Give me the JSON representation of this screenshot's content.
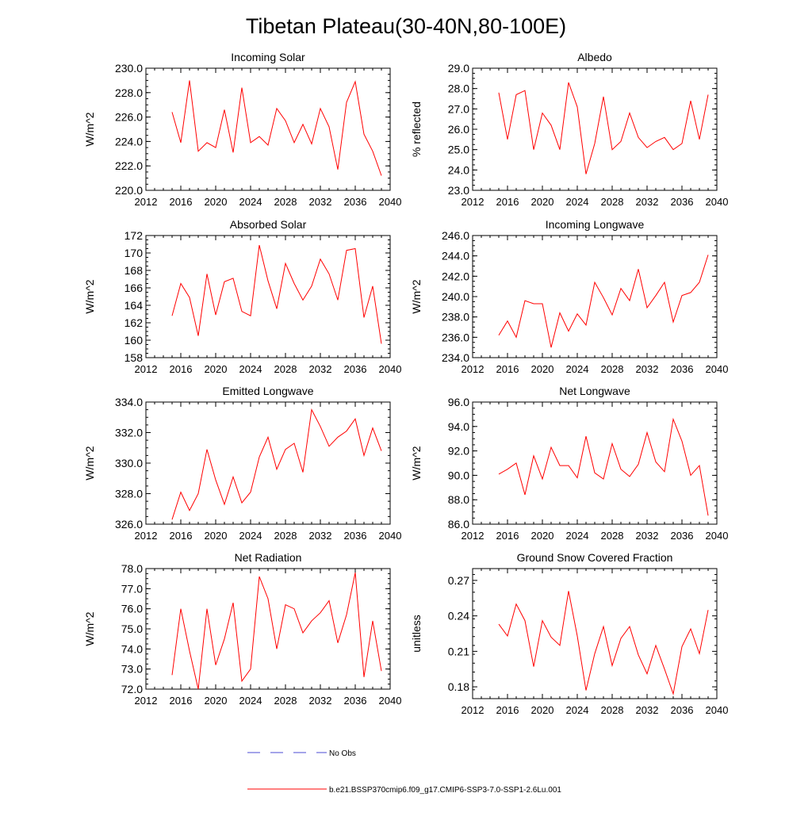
{
  "figure": {
    "title": "Tibetan Plateau(30-40N,80-100E)",
    "legend": [
      {
        "label": "No Obs",
        "color": "#4b4bd6",
        "style": "dashed"
      },
      {
        "label": "b.e21.BSSP370cmip6.f09_g17.CMIP6-SSP3-7.0-SSP1-2.6Lu.001",
        "color": "#ff0000",
        "style": "solid"
      }
    ]
  },
  "chart_data": [
    {
      "type": "line",
      "title": "Incoming Solar",
      "ylabel": "W/m^2",
      "xlim": [
        2012,
        2040
      ],
      "ylim": [
        220,
        230
      ],
      "xticks": [
        2012,
        2016,
        2020,
        2024,
        2028,
        2032,
        2036,
        2040
      ],
      "yticks": [
        220,
        222,
        224,
        226,
        228,
        230
      ],
      "tick_decimals": 1,
      "x": [
        2015,
        2016,
        2017,
        2018,
        2019,
        2020,
        2021,
        2022,
        2023,
        2024,
        2025,
        2026,
        2027,
        2028,
        2029,
        2030,
        2031,
        2032,
        2033,
        2034,
        2035,
        2036,
        2037,
        2038,
        2039
      ],
      "series": [
        {
          "name": "b.e21.BSSP370cmip6.f09_g17.CMIP6-SSP3-7.0-SSP1-2.6Lu.001",
          "color": "#ff0000",
          "values": [
            226.4,
            223.9,
            229.0,
            223.2,
            223.9,
            223.5,
            226.6,
            223.1,
            228.4,
            223.9,
            224.4,
            223.7,
            226.7,
            225.7,
            223.9,
            225.4,
            223.8,
            226.7,
            225.2,
            221.7,
            227.2,
            228.9,
            224.6,
            223.2,
            221.2
          ]
        }
      ]
    },
    {
      "type": "line",
      "title": "Albedo",
      "ylabel": "% reflected",
      "xlim": [
        2012,
        2040
      ],
      "ylim": [
        23,
        29
      ],
      "xticks": [
        2012,
        2016,
        2020,
        2024,
        2028,
        2032,
        2036,
        2040
      ],
      "yticks": [
        23,
        24,
        25,
        26,
        27,
        28,
        29
      ],
      "tick_decimals": 1,
      "x": [
        2015,
        2016,
        2017,
        2018,
        2019,
        2020,
        2021,
        2022,
        2023,
        2024,
        2025,
        2026,
        2027,
        2028,
        2029,
        2030,
        2031,
        2032,
        2033,
        2034,
        2035,
        2036,
        2037,
        2038,
        2039
      ],
      "series": [
        {
          "name": "b.e21.BSSP370cmip6.f09_g17.CMIP6-SSP3-7.0-SSP1-2.6Lu.001",
          "color": "#ff0000",
          "values": [
            27.8,
            25.5,
            27.7,
            27.9,
            25.0,
            26.8,
            26.2,
            25.0,
            28.3,
            27.1,
            23.8,
            25.3,
            27.6,
            25.0,
            25.4,
            26.8,
            25.6,
            25.1,
            25.4,
            25.6,
            25.0,
            25.3,
            27.4,
            25.5,
            27.7
          ]
        }
      ]
    },
    {
      "type": "line",
      "title": "Absorbed Solar",
      "ylabel": "W/m^2",
      "xlim": [
        2012,
        2040
      ],
      "ylim": [
        158,
        172
      ],
      "xticks": [
        2012,
        2016,
        2020,
        2024,
        2028,
        2032,
        2036,
        2040
      ],
      "yticks": [
        158,
        160,
        162,
        164,
        166,
        168,
        170,
        172
      ],
      "tick_decimals": 0,
      "x": [
        2015,
        2016,
        2017,
        2018,
        2019,
        2020,
        2021,
        2022,
        2023,
        2024,
        2025,
        2026,
        2027,
        2028,
        2029,
        2030,
        2031,
        2032,
        2033,
        2034,
        2035,
        2036,
        2037,
        2038,
        2039
      ],
      "series": [
        {
          "name": "b.e21.BSSP370cmip6.f09_g17.CMIP6-SSP3-7.0-SSP1-2.6Lu.001",
          "color": "#ff0000",
          "values": [
            162.8,
            166.5,
            164.9,
            160.5,
            167.6,
            162.9,
            166.7,
            167.1,
            163.3,
            162.8,
            170.9,
            166.8,
            163.6,
            168.8,
            166.5,
            164.6,
            166.2,
            169.3,
            167.6,
            164.6,
            170.3,
            170.5,
            162.6,
            166.2,
            159.6
          ]
        }
      ]
    },
    {
      "type": "line",
      "title": "Incoming Longwave",
      "ylabel": "W/m^2",
      "xlim": [
        2012,
        2040
      ],
      "ylim": [
        234,
        246
      ],
      "xticks": [
        2012,
        2016,
        2020,
        2024,
        2028,
        2032,
        2036,
        2040
      ],
      "yticks": [
        234,
        236,
        238,
        240,
        242,
        244,
        246
      ],
      "tick_decimals": 1,
      "x": [
        2015,
        2016,
        2017,
        2018,
        2019,
        2020,
        2021,
        2022,
        2023,
        2024,
        2025,
        2026,
        2027,
        2028,
        2029,
        2030,
        2031,
        2032,
        2033,
        2034,
        2035,
        2036,
        2037,
        2038,
        2039
      ],
      "series": [
        {
          "name": "b.e21.BSSP370cmip6.f09_g17.CMIP6-SSP3-7.0-SSP1-2.6Lu.001",
          "color": "#ff0000",
          "values": [
            236.2,
            237.6,
            236.0,
            239.6,
            239.3,
            239.3,
            235.0,
            238.4,
            236.6,
            238.3,
            237.2,
            241.4,
            239.9,
            238.2,
            240.8,
            239.6,
            242.7,
            238.9,
            240.1,
            241.4,
            237.5,
            240.1,
            240.4,
            241.4,
            244.1
          ]
        }
      ]
    },
    {
      "type": "line",
      "title": "Emitted Longwave",
      "ylabel": "W/m^2",
      "xlim": [
        2012,
        2040
      ],
      "ylim": [
        326,
        334
      ],
      "xticks": [
        2012,
        2016,
        2020,
        2024,
        2028,
        2032,
        2036,
        2040
      ],
      "yticks": [
        326,
        328,
        330,
        332,
        334
      ],
      "tick_decimals": 1,
      "x": [
        2015,
        2016,
        2017,
        2018,
        2019,
        2020,
        2021,
        2022,
        2023,
        2024,
        2025,
        2026,
        2027,
        2028,
        2029,
        2030,
        2031,
        2032,
        2033,
        2034,
        2035,
        2036,
        2037,
        2038,
        2039
      ],
      "series": [
        {
          "name": "b.e21.BSSP370cmip6.f09_g17.CMIP6-SSP3-7.0-SSP1-2.6Lu.001",
          "color": "#ff0000",
          "values": [
            326.3,
            328.1,
            326.9,
            328.0,
            330.9,
            328.9,
            327.3,
            329.1,
            327.4,
            328.1,
            330.4,
            331.7,
            329.6,
            330.9,
            331.3,
            329.4,
            333.5,
            332.4,
            331.1,
            331.7,
            332.1,
            332.9,
            330.5,
            332.3,
            330.8
          ]
        }
      ]
    },
    {
      "type": "line",
      "title": "Net Longwave",
      "ylabel": "W/m^2",
      "xlim": [
        2012,
        2040
      ],
      "ylim": [
        86,
        96
      ],
      "xticks": [
        2012,
        2016,
        2020,
        2024,
        2028,
        2032,
        2036,
        2040
      ],
      "yticks": [
        86,
        88,
        90,
        92,
        94,
        96
      ],
      "tick_decimals": 1,
      "x": [
        2015,
        2016,
        2017,
        2018,
        2019,
        2020,
        2021,
        2022,
        2023,
        2024,
        2025,
        2026,
        2027,
        2028,
        2029,
        2030,
        2031,
        2032,
        2033,
        2034,
        2035,
        2036,
        2037,
        2038,
        2039
      ],
      "series": [
        {
          "name": "b.e21.BSSP370cmip6.f09_g17.CMIP6-SSP3-7.0-SSP1-2.6Lu.001",
          "color": "#ff0000",
          "values": [
            90.1,
            90.5,
            91.0,
            88.4,
            91.6,
            89.7,
            92.3,
            90.8,
            90.8,
            89.8,
            93.2,
            90.2,
            89.7,
            92.6,
            90.5,
            89.9,
            90.9,
            93.5,
            91.1,
            90.3,
            94.6,
            92.8,
            90.0,
            90.8,
            86.7
          ]
        }
      ]
    },
    {
      "type": "line",
      "title": "Net Radiation",
      "ylabel": "W/m^2",
      "xlim": [
        2012,
        2040
      ],
      "ylim": [
        72,
        78
      ],
      "xticks": [
        2012,
        2016,
        2020,
        2024,
        2028,
        2032,
        2036,
        2040
      ],
      "yticks": [
        72,
        73,
        74,
        75,
        76,
        77,
        78
      ],
      "tick_decimals": 1,
      "x": [
        2015,
        2016,
        2017,
        2018,
        2019,
        2020,
        2021,
        2022,
        2023,
        2024,
        2025,
        2026,
        2027,
        2028,
        2029,
        2030,
        2031,
        2032,
        2033,
        2034,
        2035,
        2036,
        2037,
        2038,
        2039
      ],
      "series": [
        {
          "name": "b.e21.BSSP370cmip6.f09_g17.CMIP6-SSP3-7.0-SSP1-2.6Lu.001",
          "color": "#ff0000",
          "values": [
            72.7,
            76.0,
            73.9,
            72.0,
            76.0,
            73.2,
            74.5,
            76.3,
            72.4,
            73.0,
            77.6,
            76.5,
            74.0,
            76.2,
            76.0,
            74.8,
            75.4,
            75.8,
            76.4,
            74.3,
            75.7,
            77.8,
            72.6,
            75.4,
            72.9
          ]
        }
      ]
    },
    {
      "type": "line",
      "title": "Ground Snow Covered Fraction",
      "ylabel": "unitless",
      "xlim": [
        2012,
        2040
      ],
      "ylim": [
        0.17,
        0.28
      ],
      "xticks": [
        2012,
        2016,
        2020,
        2024,
        2028,
        2032,
        2036,
        2040
      ],
      "yticks": [
        0.18,
        0.21,
        0.24,
        0.27
      ],
      "tick_decimals": 2,
      "x": [
        2015,
        2016,
        2017,
        2018,
        2019,
        2020,
        2021,
        2022,
        2023,
        2024,
        2025,
        2026,
        2027,
        2028,
        2029,
        2030,
        2031,
        2032,
        2033,
        2034,
        2035,
        2036,
        2037,
        2038,
        2039
      ],
      "series": [
        {
          "name": "b.e21.BSSP370cmip6.f09_g17.CMIP6-SSP3-7.0-SSP1-2.6Lu.001",
          "color": "#ff0000",
          "values": [
            0.233,
            0.223,
            0.25,
            0.236,
            0.197,
            0.236,
            0.222,
            0.215,
            0.261,
            0.223,
            0.177,
            0.208,
            0.231,
            0.198,
            0.221,
            0.231,
            0.207,
            0.191,
            0.215,
            0.195,
            0.174,
            0.214,
            0.229,
            0.208,
            0.245
          ]
        }
      ]
    }
  ]
}
